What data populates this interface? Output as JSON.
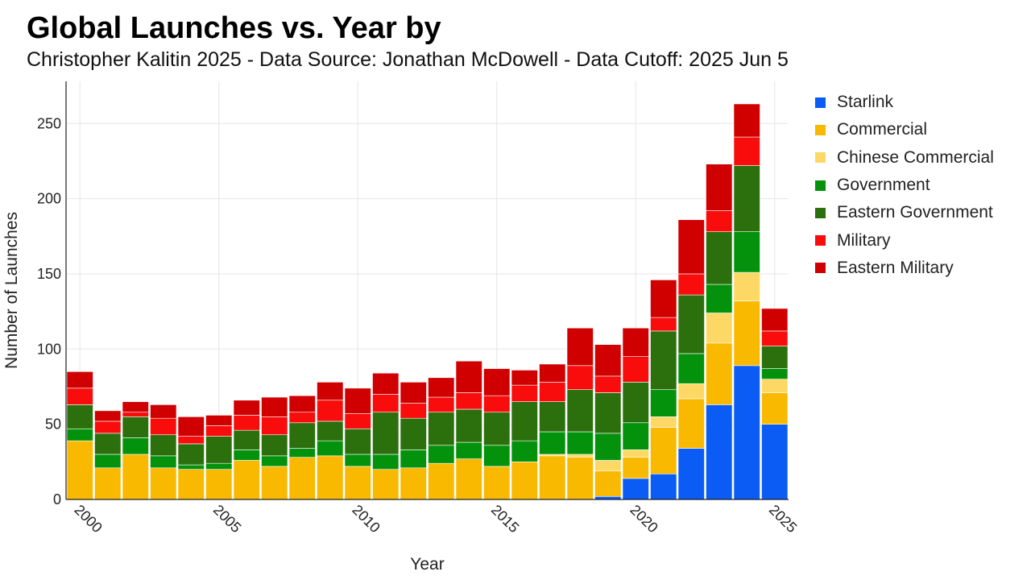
{
  "title": "Global Launches vs. Year by",
  "subtitle": "Christopher Kalitin 2025 - Data Source: Jonathan McDowell - Data Cutoff: 2025 Jun 5",
  "colors": {
    "grid": "#e6e6e6",
    "axis": "#222222",
    "bar_separator": "#ffffff"
  },
  "chart_data": {
    "type": "bar",
    "stacked": true,
    "title": "Global Launches vs. Year by",
    "subtitle": "Christopher Kalitin 2025 - Data Source: Jonathan McDowell - Data Cutoff: 2025 Jun 5",
    "xlabel": "Year",
    "ylabel": "Number of Launches",
    "x": [
      2000,
      2001,
      2002,
      2003,
      2004,
      2005,
      2006,
      2007,
      2008,
      2009,
      2010,
      2011,
      2012,
      2013,
      2014,
      2015,
      2016,
      2017,
      2018,
      2019,
      2020,
      2021,
      2022,
      2023,
      2024,
      2025
    ],
    "xlim": [
      1999.5,
      2025.5
    ],
    "ylim": [
      0,
      278
    ],
    "x_ticks": [
      2000,
      2005,
      2010,
      2015,
      2020,
      2025
    ],
    "y_ticks": [
      0,
      50,
      100,
      150,
      200,
      250
    ],
    "grid": true,
    "legend_position": "right",
    "series": [
      {
        "name": "Starlink",
        "color": "#0a5cf5",
        "values": [
          0,
          0,
          0,
          0,
          0,
          0,
          0,
          0,
          0,
          0,
          0,
          0,
          0,
          0,
          0,
          0,
          0,
          0,
          0,
          2,
          14,
          17,
          34,
          63,
          89,
          50
        ]
      },
      {
        "name": "Commercial",
        "color": "#f9b900",
        "values": [
          39,
          21,
          30,
          21,
          20,
          20,
          26,
          22,
          28,
          29,
          22,
          20,
          21,
          24,
          27,
          22,
          25,
          29,
          28,
          17,
          14,
          31,
          33,
          41,
          43,
          21
        ]
      },
      {
        "name": "Chinese Commercial",
        "color": "#fdd864",
        "values": [
          0,
          0,
          0,
          0,
          0,
          0,
          0,
          0,
          0,
          0,
          0,
          0,
          0,
          0,
          0,
          0,
          0,
          1,
          2,
          7,
          5,
          7,
          10,
          20,
          19,
          9
        ]
      },
      {
        "name": "Government",
        "color": "#04920c",
        "values": [
          8,
          9,
          11,
          8,
          3,
          4,
          7,
          7,
          6,
          10,
          8,
          10,
          12,
          12,
          11,
          14,
          14,
          15,
          15,
          18,
          18,
          18,
          20,
          19,
          27,
          7
        ]
      },
      {
        "name": "Eastern Government",
        "color": "#2c700e",
        "values": [
          16,
          14,
          14,
          14,
          14,
          18,
          13,
          14,
          17,
          13,
          17,
          28,
          21,
          22,
          22,
          22,
          26,
          20,
          28,
          27,
          27,
          39,
          39,
          35,
          44,
          15
        ]
      },
      {
        "name": "Military",
        "color": "#f90c0c",
        "values": [
          11,
          8,
          3,
          11,
          5,
          7,
          10,
          12,
          7,
          14,
          10,
          12,
          10,
          10,
          11,
          11,
          11,
          13,
          16,
          11,
          17,
          9,
          14,
          14,
          19,
          10
        ]
      },
      {
        "name": "Eastern Military",
        "color": "#d10000",
        "values": [
          11,
          7,
          7,
          9,
          13,
          7,
          10,
          13,
          11,
          12,
          17,
          14,
          14,
          13,
          21,
          18,
          10,
          12,
          25,
          21,
          19,
          25,
          36,
          31,
          22,
          15
        ]
      }
    ]
  }
}
